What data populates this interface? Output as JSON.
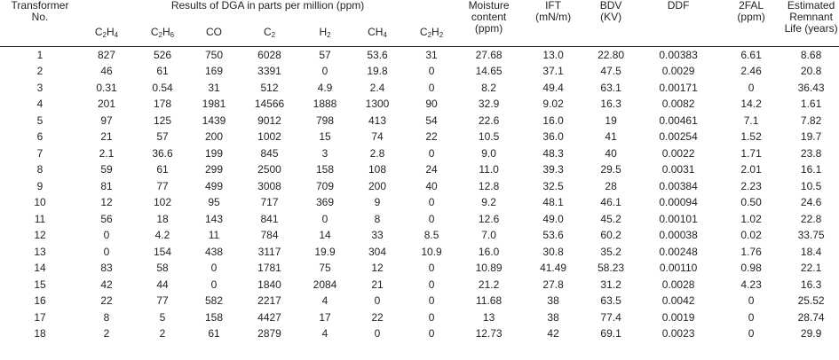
{
  "header": {
    "transformer": [
      "Transformer",
      "No."
    ],
    "dga_title": "Results of DGA in parts per million (ppm)",
    "gases": [
      {
        "base": "C",
        "sub": "2",
        "mid": "H",
        "sub2": "4"
      },
      {
        "base": "C",
        "sub": "2",
        "mid": "H",
        "sub2": "6"
      },
      {
        "base": "CO",
        "sub": "",
        "mid": "",
        "sub2": ""
      },
      {
        "base": "C",
        "sub": "2",
        "mid": "",
        "sub2": ""
      },
      {
        "base": "H",
        "sub": "2",
        "mid": "",
        "sub2": ""
      },
      {
        "base": "CH",
        "sub": "4",
        "mid": "",
        "sub2": ""
      },
      {
        "base": "C",
        "sub": "2",
        "mid": "H",
        "sub2": "2"
      }
    ],
    "moisture": [
      "Moisture",
      "content",
      "(ppm)"
    ],
    "ift": [
      "IFT",
      "(mN/m)"
    ],
    "bdv": [
      "BDV",
      "(KV)"
    ],
    "ddf": [
      "DDF"
    ],
    "fal": [
      "2FAL",
      "(ppm)"
    ],
    "life": [
      "Estimated",
      "Remnant",
      "Life (years)"
    ]
  },
  "rows": [
    [
      "1",
      "827",
      "526",
      "750",
      "6028",
      "57",
      "53.6",
      "31",
      "27.68",
      "13.0",
      "22.80",
      "0.00383",
      "6.61",
      "8.68"
    ],
    [
      "2",
      "46",
      "61",
      "169",
      "3391",
      "0",
      "19.8",
      "0",
      "14.65",
      "37.1",
      "47.5",
      "0.0029",
      "2.46",
      "20.8"
    ],
    [
      "3",
      "0.31",
      "0.54",
      "31",
      "512",
      "4.9",
      "2.4",
      "0",
      "8.2",
      "49.4",
      "63.1",
      "0.00171",
      "0",
      "36.43"
    ],
    [
      "4",
      "201",
      "178",
      "1981",
      "14566",
      "1888",
      "1300",
      "90",
      "32.9",
      "9.02",
      "16.3",
      "0.0082",
      "14.2",
      "1.61"
    ],
    [
      "5",
      "97",
      "125",
      "1439",
      "9012",
      "798",
      "413",
      "54",
      "22.6",
      "16.0",
      "19",
      "0.00461",
      "7.1",
      "7.82"
    ],
    [
      "6",
      "21",
      "57",
      "200",
      "1002",
      "15",
      "74",
      "22",
      "10.5",
      "36.0",
      "41",
      "0.00254",
      "1.52",
      "19.7"
    ],
    [
      "7",
      "2.1",
      "36.6",
      "199",
      "845",
      "3",
      "2.8",
      "0",
      "9.0",
      "48.3",
      "40",
      "0.0022",
      "1.71",
      "23.8"
    ],
    [
      "8",
      "59",
      "61",
      "299",
      "2500",
      "158",
      "108",
      "24",
      "11.0",
      "39.3",
      "29.5",
      "0.0031",
      "2.01",
      "16.1"
    ],
    [
      "9",
      "81",
      "77",
      "499",
      "3008",
      "709",
      "200",
      "40",
      "12.8",
      "32.5",
      "28",
      "0.00384",
      "2.23",
      "10.5"
    ],
    [
      "10",
      "12",
      "102",
      "95",
      "717",
      "369",
      "9",
      "0",
      "9.2",
      "48.1",
      "46.1",
      "0.00094",
      "0.50",
      "24.6"
    ],
    [
      "11",
      "56",
      "18",
      "143",
      "841",
      "0",
      "8",
      "0",
      "12.6",
      "49.0",
      "45.2",
      "0.00101",
      "1.02",
      "22.8"
    ],
    [
      "12",
      "0",
      "4.2",
      "11",
      "784",
      "14",
      "33",
      "8.5",
      "7.0",
      "53.6",
      "60.2",
      "0.00038",
      "0.02",
      "33.75"
    ],
    [
      "13",
      "0",
      "154",
      "438",
      "3117",
      "19.9",
      "304",
      "10.9",
      "16.0",
      "30.8",
      "35.2",
      "0.00248",
      "1.76",
      "18.4"
    ],
    [
      "14",
      "83",
      "58",
      "0",
      "1781",
      "75",
      "12",
      "0",
      "10.89",
      "41.49",
      "58.23",
      "0.00110",
      "0.98",
      "22.1"
    ],
    [
      "15",
      "42",
      "44",
      "0",
      "1840",
      "2084",
      "21",
      "0",
      "21.2",
      "27.8",
      "31.2",
      "0.0028",
      "4.23",
      "16.3"
    ],
    [
      "16",
      "22",
      "77",
      "582",
      "2217",
      "4",
      "0",
      "0",
      "11.68",
      "38",
      "63.5",
      "0.0042",
      "0",
      "25.52"
    ],
    [
      "17",
      "8",
      "5",
      "158",
      "4427",
      "17",
      "22",
      "0",
      "13",
      "38",
      "77.4",
      "0.0019",
      "0",
      "28.74"
    ],
    [
      "18",
      "2",
      "2",
      "61",
      "2879",
      "4",
      "0",
      "0",
      "12.73",
      "42",
      "69.1",
      "0.0023",
      "0",
      "29.9"
    ]
  ]
}
